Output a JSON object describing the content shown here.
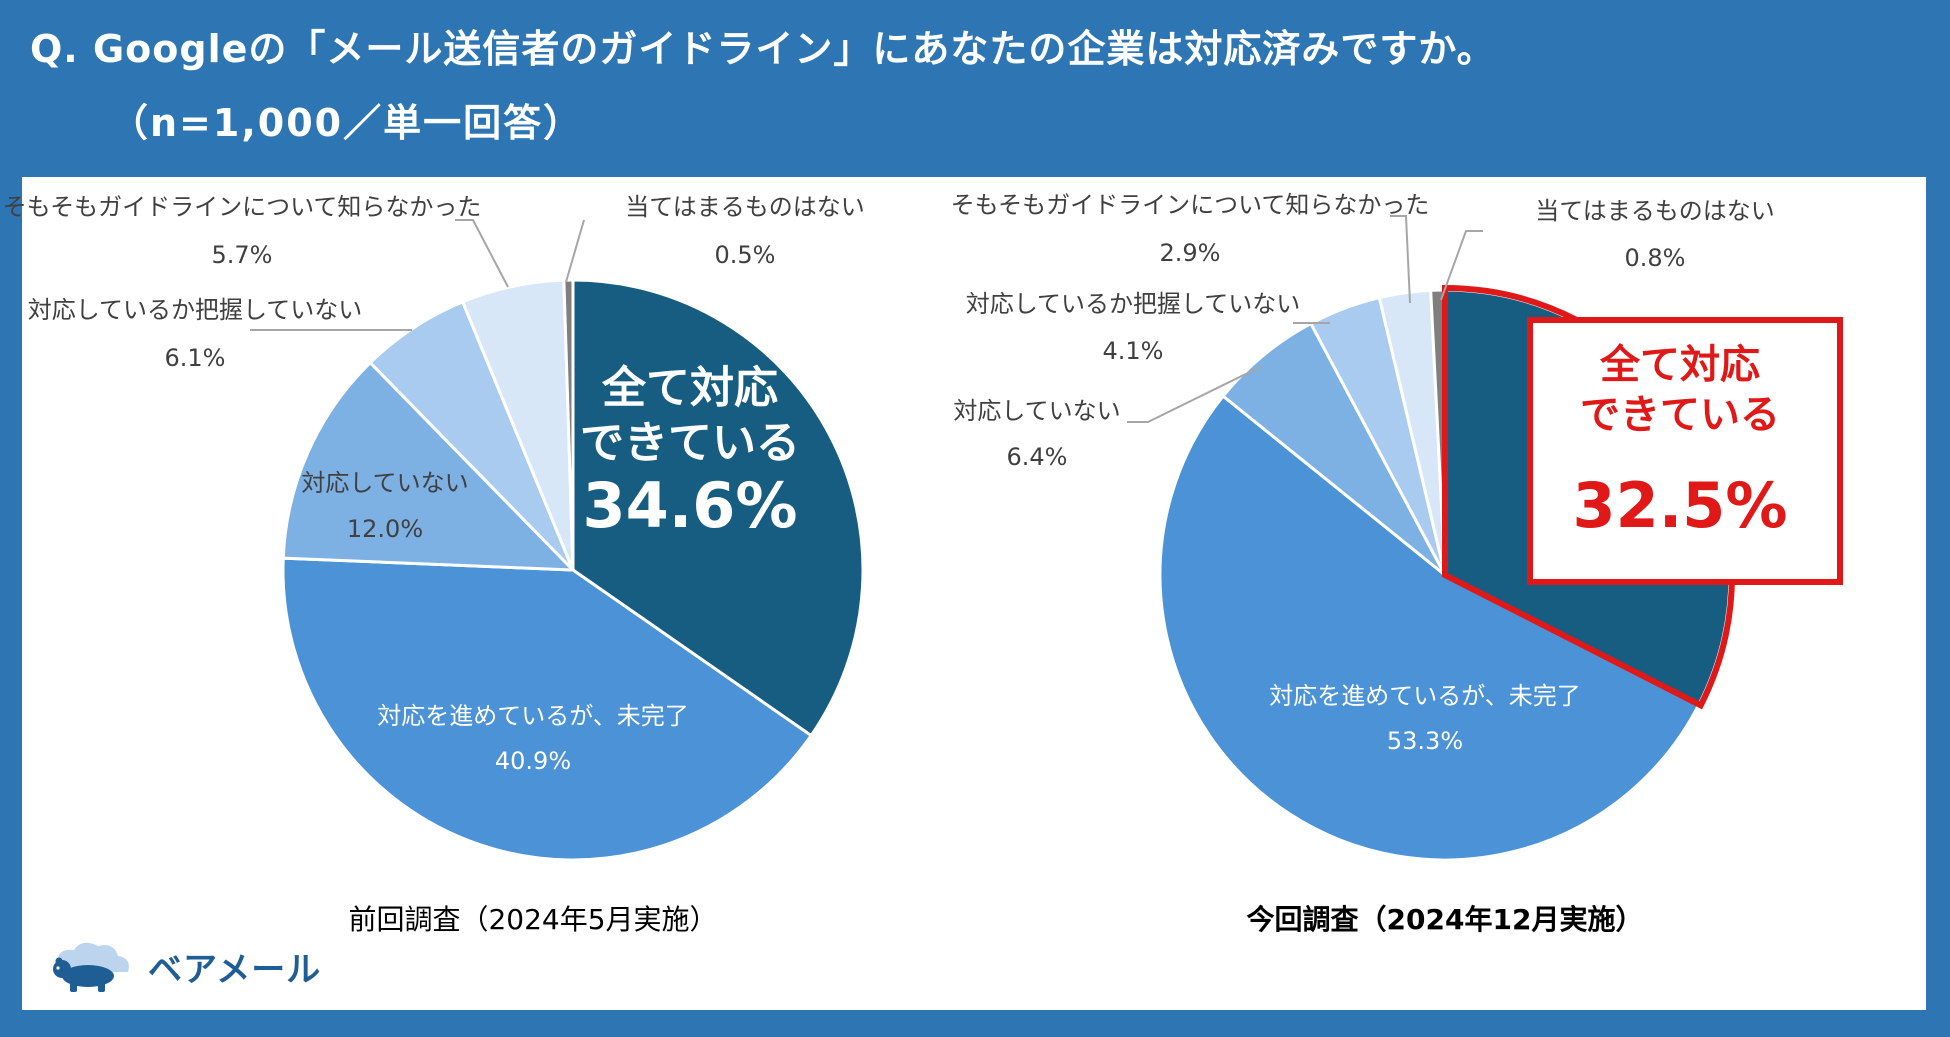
{
  "question": {
    "title": "Q. Googleの「メール送信者のガイドライン」にあなたの企業は対応済みですか。",
    "sample": "（n=1,000／単一回答）"
  },
  "brand": {
    "name": "ベアメール",
    "icon": "bear-cloud-logo"
  },
  "colors": {
    "background": "#2e76b3",
    "dark": "#175d82",
    "mid": "#4b92d6",
    "light": "#7db0e3",
    "lighter": "#a8cbef",
    "lightest": "#d8e7f7",
    "gray": "#7f7f7f",
    "highlight": "#e01818"
  },
  "chart_data": [
    {
      "type": "pie",
      "caption": "前回調査（2024年5月実施）",
      "slices": [
        {
          "label": "全て対応\nできている",
          "value": 34.6,
          "display": "34.6%"
        },
        {
          "label": "対応を進めているが、未完了",
          "value": 40.9,
          "display": "40.9%"
        },
        {
          "label": "対応していない",
          "value": 12.0,
          "display": "12.0%"
        },
        {
          "label": "対応しているか把握していない",
          "value": 6.1,
          "display": "6.1%"
        },
        {
          "label": "そもそもガイドラインについて知らなかった",
          "value": 5.7,
          "display": "5.7%"
        },
        {
          "label": "当てはまるものはない",
          "value": 0.5,
          "display": "0.5%"
        }
      ]
    },
    {
      "type": "pie",
      "caption": "今回調査（2024年12月実施）",
      "slices": [
        {
          "label": "全て対応\nできている",
          "value": 32.5,
          "display": "32.5%"
        },
        {
          "label": "対応を進めているが、未完了",
          "value": 53.3,
          "display": "53.3%"
        },
        {
          "label": "対応していない",
          "value": 6.4,
          "display": "6.4%"
        },
        {
          "label": "対応しているか把握していない",
          "value": 4.1,
          "display": "4.1%"
        },
        {
          "label": "そもそもガイドラインについて知らなかった",
          "value": 2.9,
          "display": "2.9%"
        },
        {
          "label": "当てはまるものはない",
          "value": 0.8,
          "display": "0.8%"
        }
      ]
    }
  ]
}
